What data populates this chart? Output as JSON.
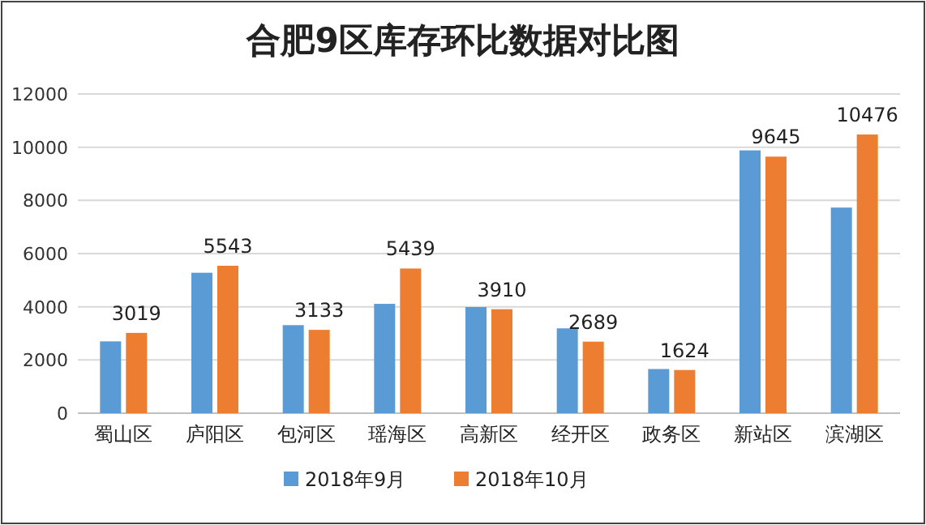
{
  "chart_data": {
    "type": "bar",
    "title": "合肥9区库存环比数据对比图",
    "categories": [
      "蜀山区",
      "庐阳区",
      "包河区",
      "瑶海区",
      "高新区",
      "经开区",
      "政务区",
      "新站区",
      "滨湖区"
    ],
    "series": [
      {
        "name": "2018年9月",
        "color": "#5b9bd5",
        "values": [
          2700,
          5280,
          3310,
          4110,
          3990,
          3190,
          1660,
          9880,
          7730
        ]
      },
      {
        "name": "2018年10月",
        "color": "#ed7d31",
        "values": [
          3019,
          5543,
          3133,
          5439,
          3910,
          2689,
          1624,
          9645,
          10476
        ],
        "value_labels": [
          "3019",
          "5543",
          "3133",
          "5439",
          "3910",
          "2689",
          "1624",
          "9645",
          "10476"
        ]
      }
    ],
    "ylim": [
      0,
      12000
    ],
    "yticks": [
      0,
      2000,
      4000,
      6000,
      8000,
      10000,
      12000
    ],
    "grid": "y",
    "legend": "bottom"
  }
}
